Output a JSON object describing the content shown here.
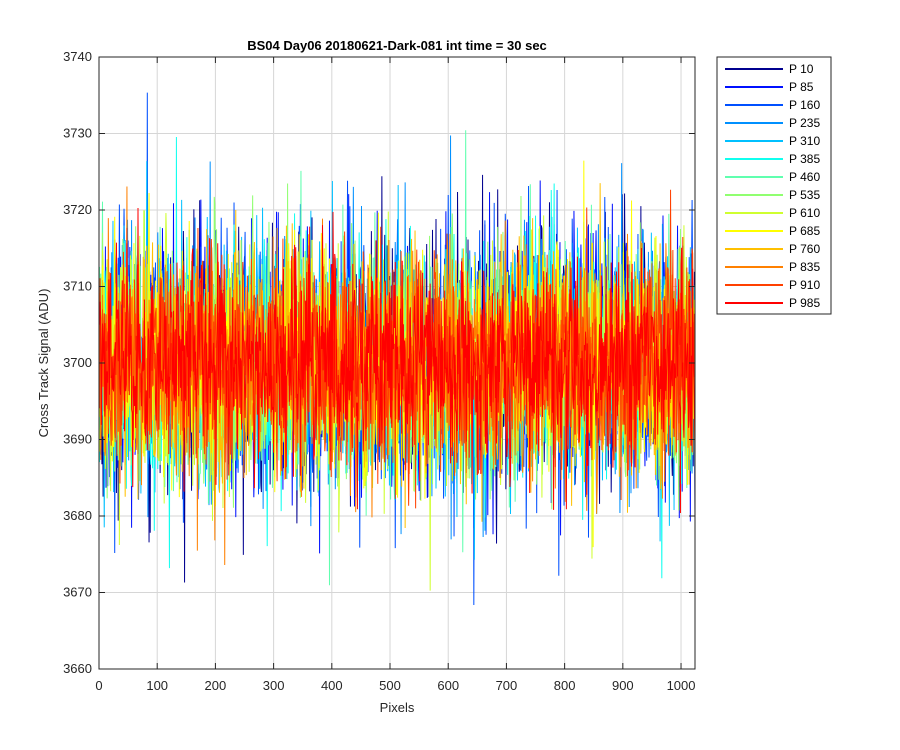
{
  "chart_data": {
    "type": "line",
    "title": "BS04 Day06 20180621-Dark-081 int time = 30 sec",
    "xlabel": "Pixels",
    "ylabel": "Cross Track Signal (ADU)",
    "xlim": [
      0,
      1024
    ],
    "ylim": [
      3660,
      3740
    ],
    "xticks": [
      0,
      100,
      200,
      300,
      400,
      500,
      600,
      700,
      800,
      900,
      1000
    ],
    "yticks": [
      3660,
      3670,
      3680,
      3690,
      3700,
      3710,
      3720,
      3730,
      3740
    ],
    "grid": true,
    "legend_position": "outside-top-right",
    "noise_center": 3700,
    "points_per_series": 1024,
    "series": [
      {
        "name": "P 10",
        "color": "#00008F"
      },
      {
        "name": "P 85",
        "color": "#0010FF"
      },
      {
        "name": "P 160",
        "color": "#0050FF"
      },
      {
        "name": "P 235",
        "color": "#0090FF"
      },
      {
        "name": "P 310",
        "color": "#00C0FF"
      },
      {
        "name": "P 385",
        "color": "#10FFEF"
      },
      {
        "name": "P 460",
        "color": "#60FFAF"
      },
      {
        "name": "P 535",
        "color": "#90FF70"
      },
      {
        "name": "P 610",
        "color": "#CFFF30"
      },
      {
        "name": "P 685",
        "color": "#FFFF00"
      },
      {
        "name": "P 760",
        "color": "#FFC000"
      },
      {
        "name": "P 835",
        "color": "#FF8000"
      },
      {
        "name": "P 910",
        "color": "#FF4000"
      },
      {
        "name": "P 985",
        "color": "#FF0000"
      }
    ]
  }
}
